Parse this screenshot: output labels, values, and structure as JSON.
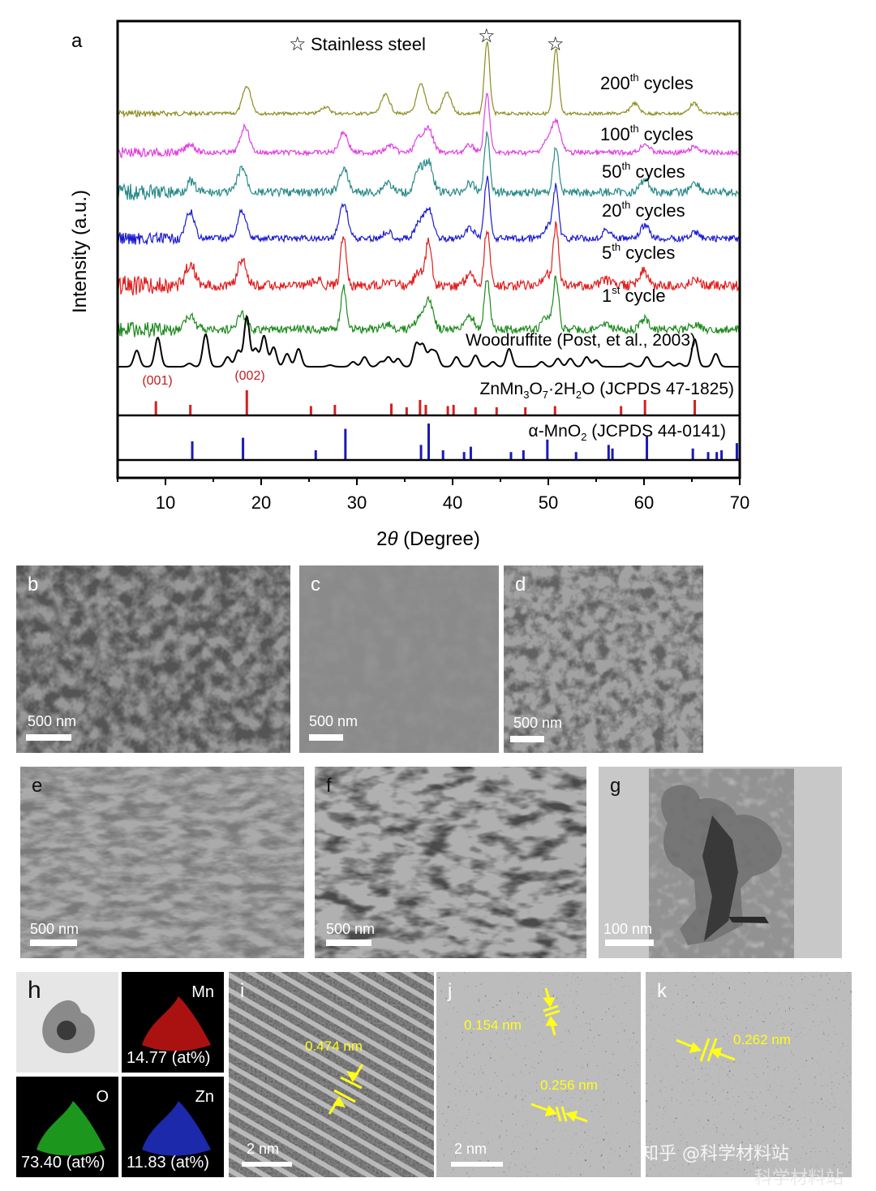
{
  "figure": {
    "panel_a_label": "a",
    "panel_labels": [
      "b",
      "c",
      "d",
      "e",
      "f",
      "g",
      "h",
      "i",
      "j",
      "k"
    ]
  },
  "chart_data": {
    "type": "line",
    "title": "",
    "xlabel": "2θ (Degree)",
    "ylabel": "Intensity (a.u.)",
    "xlim": [
      5,
      70
    ],
    "x_ticks": [
      10,
      20,
      30,
      40,
      50,
      60,
      70
    ],
    "grid": false,
    "legend_note": "☆ Stainless steel",
    "substrate_peaks_marked": [
      43.6,
      50.8
    ],
    "series": [
      {
        "name": "200th cycles",
        "label_main": "200",
        "label_sup": "th",
        "label_rest": " cycles",
        "color": "#8c8c1e",
        "peaks": [
          [
            18.5,
            0.8
          ],
          [
            26.7,
            0.2
          ],
          [
            33.0,
            0.55
          ],
          [
            36.7,
            0.85
          ],
          [
            39.4,
            0.6
          ],
          [
            43.6,
            2.1
          ],
          [
            50.8,
            1.9
          ],
          [
            59.0,
            0.3
          ],
          [
            65.2,
            0.3
          ]
        ]
      },
      {
        "name": "100th cycles",
        "label_main": "100",
        "label_sup": "th",
        "label_rest": " cycles",
        "color": "#e040e0",
        "peaks": [
          [
            12.6,
            0.3
          ],
          [
            18.3,
            0.9
          ],
          [
            28.6,
            0.7
          ],
          [
            33.5,
            0.25
          ],
          [
            36.5,
            0.5
          ],
          [
            37.5,
            0.8
          ],
          [
            41.8,
            0.25
          ],
          [
            43.6,
            2.0
          ],
          [
            49.8,
            0.35
          ],
          [
            50.8,
            1.1
          ],
          [
            60.1,
            0.3
          ],
          [
            65.3,
            0.2
          ]
        ]
      },
      {
        "name": "50th cycles",
        "label_main": "50",
        "label_sup": "th",
        "label_rest": " cycles",
        "color": "#2a8a8a",
        "peaks": [
          [
            12.6,
            0.35
          ],
          [
            18.0,
            0.85
          ],
          [
            28.6,
            0.8
          ],
          [
            33.2,
            0.35
          ],
          [
            36.5,
            0.75
          ],
          [
            37.5,
            1.0
          ],
          [
            41.8,
            0.3
          ],
          [
            43.6,
            2.0
          ],
          [
            50.8,
            1.6
          ],
          [
            60.1,
            0.45
          ],
          [
            65.3,
            0.35
          ]
        ]
      },
      {
        "name": "20th cycles",
        "label_main": "20",
        "label_sup": "th",
        "label_rest": " cycles",
        "color": "#1a1ad0",
        "peaks": [
          [
            12.6,
            0.9
          ],
          [
            18.0,
            0.95
          ],
          [
            28.6,
            1.2
          ],
          [
            33.2,
            0.25
          ],
          [
            36.5,
            0.5
          ],
          [
            37.5,
            1.0
          ],
          [
            41.8,
            0.35
          ],
          [
            43.6,
            2.1
          ],
          [
            50.0,
            0.45
          ],
          [
            50.8,
            1.7
          ],
          [
            56.1,
            0.3
          ],
          [
            60.1,
            0.45
          ],
          [
            65.3,
            0.2
          ]
        ]
      },
      {
        "name": "5th cycles",
        "label_main": "5",
        "label_sup": "th",
        "label_rest": " cycles",
        "color": "#e01e1e",
        "peaks": [
          [
            12.6,
            0.9
          ],
          [
            18.0,
            1.0
          ],
          [
            25.8,
            0.2
          ],
          [
            28.6,
            2.0
          ],
          [
            33.2,
            0.2
          ],
          [
            36.5,
            0.55
          ],
          [
            37.5,
            1.8
          ],
          [
            41.8,
            0.45
          ],
          [
            43.6,
            2.2
          ],
          [
            49.8,
            0.45
          ],
          [
            50.8,
            2.3
          ],
          [
            56.0,
            0.2
          ],
          [
            59.9,
            0.55
          ],
          [
            65.3,
            0.2
          ]
        ]
      },
      {
        "name": "1st cycle",
        "label_main": "1",
        "label_sup": "st",
        "label_rest": " cycle",
        "color": "#1e8a1e",
        "peaks": [
          [
            12.6,
            0.5
          ],
          [
            18.0,
            0.6
          ],
          [
            28.6,
            1.6
          ],
          [
            33.2,
            0.2
          ],
          [
            36.5,
            0.4
          ],
          [
            37.5,
            1.1
          ],
          [
            41.8,
            0.5
          ],
          [
            43.6,
            2.0
          ],
          [
            49.8,
            0.45
          ],
          [
            50.8,
            2.0
          ],
          [
            56.0,
            0.2
          ],
          [
            60.1,
            0.4
          ],
          [
            65.3,
            0.2
          ]
        ]
      },
      {
        "name": "Woodruffite (Post, et al., 2003)",
        "color": "#000000",
        "peaks": [
          [
            7.0,
            0.5
          ],
          [
            9.2,
            0.9
          ],
          [
            12.5,
            0.1
          ],
          [
            14.2,
            1.0
          ],
          [
            16.5,
            0.3
          ],
          [
            17.6,
            0.5
          ],
          [
            18.5,
            1.55
          ],
          [
            19.4,
            0.55
          ],
          [
            20.3,
            0.95
          ],
          [
            21.3,
            0.6
          ],
          [
            22.7,
            0.4
          ],
          [
            23.9,
            0.55
          ],
          [
            27.2,
            0.05
          ],
          [
            29.6,
            0.15
          ],
          [
            30.8,
            0.3
          ],
          [
            32.5,
            0.15
          ],
          [
            33.3,
            0.3
          ],
          [
            34.3,
            0.25
          ],
          [
            36.2,
            0.7
          ],
          [
            36.9,
            0.65
          ],
          [
            37.7,
            0.45
          ],
          [
            38.3,
            0.4
          ],
          [
            40.4,
            0.3
          ],
          [
            42.4,
            0.35
          ],
          [
            44.2,
            0.15
          ],
          [
            45.9,
            0.55
          ],
          [
            49.3,
            0.15
          ],
          [
            51.0,
            0.25
          ],
          [
            52.3,
            0.25
          ],
          [
            54.0,
            0.3
          ],
          [
            55.0,
            0.2
          ],
          [
            58.5,
            0.1
          ],
          [
            60.3,
            0.3
          ],
          [
            62.5,
            0.15
          ],
          [
            63.7,
            0.1
          ],
          [
            65.3,
            0.85
          ],
          [
            67.5,
            0.4
          ]
        ]
      }
    ],
    "reference_sticks": [
      {
        "name": "ZnMn3O7·2H2O (JCPDS 47-1825)",
        "color": "#d42020",
        "annotations": [
          {
            "hkl": "(001)",
            "x": 9.0
          },
          {
            "hkl": "(002)",
            "x": 18.5
          }
        ],
        "positions": [
          9.0,
          12.6,
          18.5,
          25.2,
          27.7,
          33.6,
          35.2,
          36.6,
          37.2,
          39.5,
          40.1,
          42.4,
          44.6,
          47.6,
          50.7,
          57.6,
          60.1,
          65.3
        ],
        "heights": [
          0.55,
          0.4,
          1.0,
          0.35,
          0.4,
          0.45,
          0.3,
          0.6,
          0.4,
          0.35,
          0.4,
          0.3,
          0.3,
          0.3,
          0.35,
          0.35,
          0.6,
          0.6
        ]
      },
      {
        "name": "α-MnO2 (JCPDS 44-0141)",
        "color": "#1a1ab4",
        "positions": [
          12.8,
          18.1,
          25.7,
          28.8,
          36.7,
          37.5,
          39.0,
          41.2,
          41.9,
          46.1,
          47.4,
          49.9,
          52.9,
          56.3,
          56.7,
          60.3,
          65.1,
          66.7,
          67.6,
          68.1,
          69.7
        ],
        "heights": [
          0.5,
          0.6,
          0.25,
          0.85,
          0.4,
          1.0,
          0.25,
          0.2,
          0.35,
          0.2,
          0.25,
          0.55,
          0.2,
          0.4,
          0.3,
          0.65,
          0.3,
          0.2,
          0.2,
          0.25,
          0.45
        ]
      }
    ]
  },
  "labels": {
    "star": "☆",
    "stainless_steel": "Stainless steel",
    "ref1_a": "ZnMn",
    "ref1_s1": "3",
    "ref1_b": "O",
    "ref1_s2": "7",
    "ref1_c": "·2H",
    "ref1_s3": "2",
    "ref1_d": "O (JCPDS 47-1825)",
    "ref2_a": "α-MnO",
    "ref2_s1": "2",
    "ref2_b": " (JCPDS 44-0141)",
    "hkl_001": "(001)",
    "hkl_002": "(002)"
  },
  "micrographs": {
    "b": {
      "label": "b",
      "scale": "500 nm"
    },
    "c": {
      "label": "c",
      "scale": "500 nm"
    },
    "d": {
      "label": "d",
      "scale": "500 nm"
    },
    "e": {
      "label": "e",
      "scale": "500 nm"
    },
    "f": {
      "label": "f",
      "scale": "500 nm"
    },
    "g": {
      "label": "g",
      "scale": "100 nm"
    },
    "h": {
      "label": "h",
      "maps": [
        {
          "element": "Mn",
          "value": "14.77 (at%)",
          "color": "#d01818"
        },
        {
          "element": "O",
          "value": "73.40 (at%)",
          "color": "#20c020"
        },
        {
          "element": "Zn",
          "value": "11.83 (at%)",
          "color": "#2030d0"
        }
      ]
    },
    "i": {
      "label": "i",
      "scale": "2 nm",
      "d_spacing": "0.474 nm"
    },
    "j": {
      "label": "j",
      "scale": "2 nm",
      "d_spacing_1": "0.154 nm",
      "d_spacing_2": "0.256 nm"
    },
    "k": {
      "label": "k",
      "d_spacing": "0.262 nm"
    }
  },
  "watermark": {
    "line1": "知乎 @科学材料站",
    "line2": "科学材料站"
  }
}
